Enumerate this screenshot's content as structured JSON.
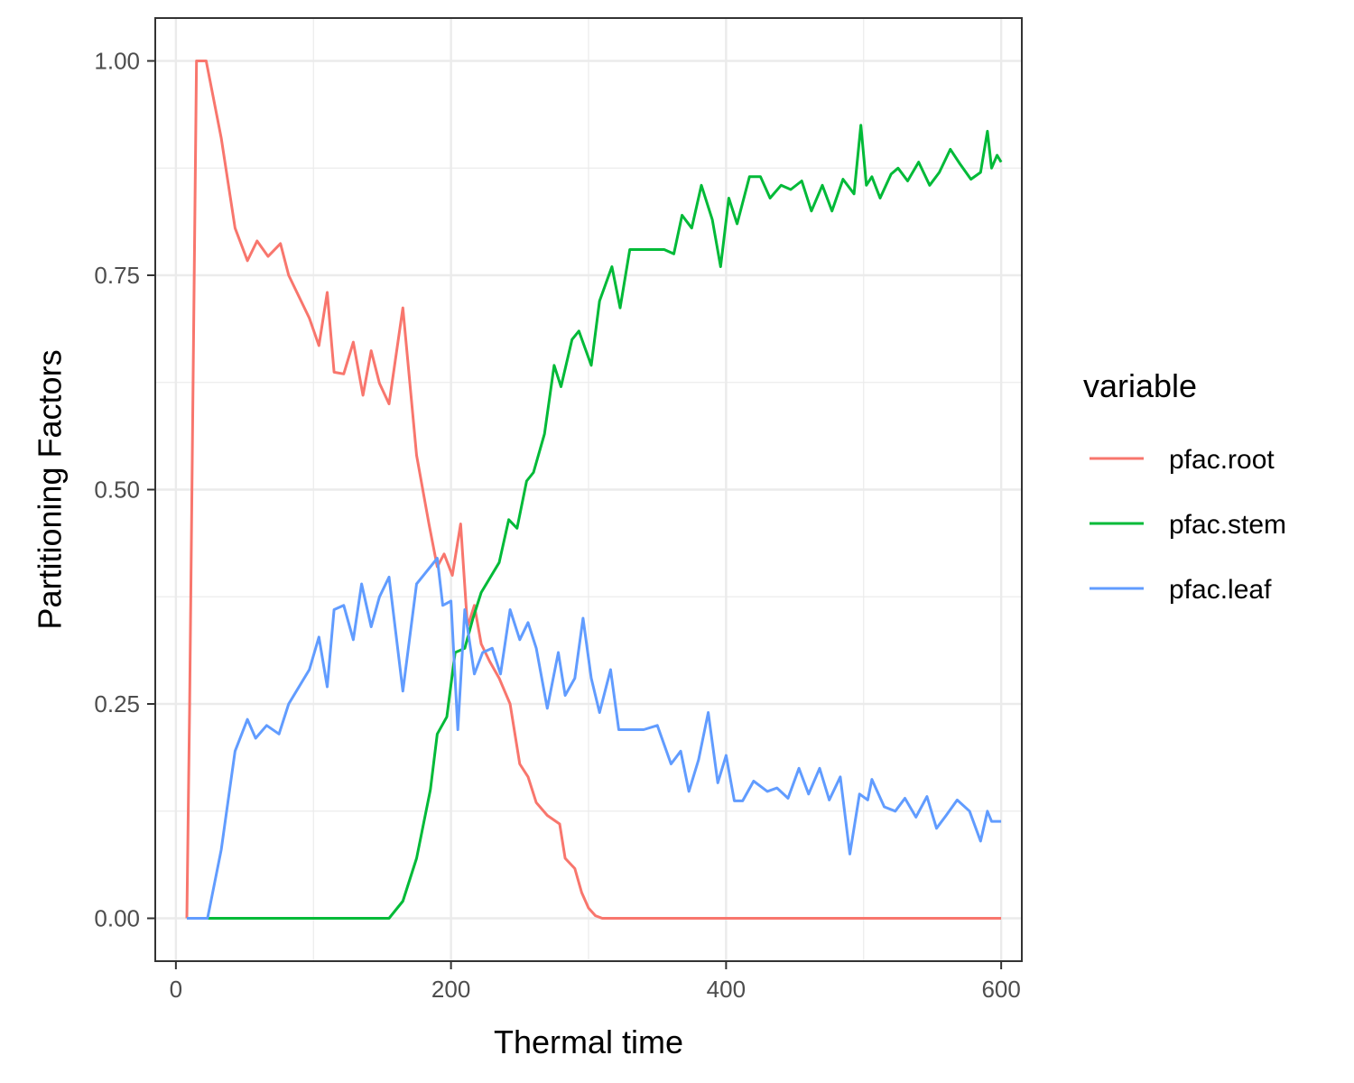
{
  "chart_data": {
    "type": "line",
    "xlabel": "Thermal time",
    "ylabel": "Partitioning Factors",
    "xlim": [
      -15,
      615
    ],
    "ylim": [
      -0.05,
      1.05
    ],
    "x_ticks": [
      0,
      200,
      400,
      600
    ],
    "x_tick_labels": [
      "0",
      "200",
      "400",
      "600"
    ],
    "y_ticks": [
      0,
      0.25,
      0.5,
      0.75,
      1.0
    ],
    "y_tick_labels": [
      "0.00",
      "0.25",
      "0.50",
      "0.75",
      "1.00"
    ],
    "grid": true,
    "legend": {
      "title": "variable",
      "position": "right"
    },
    "series": [
      {
        "name": "pfac.root",
        "color": "#F8766D",
        "x": [
          8,
          10,
          15,
          22,
          33,
          43,
          52,
          59,
          67,
          76,
          82,
          97,
          104,
          110,
          115,
          122,
          129,
          136,
          142,
          148,
          155,
          165,
          175,
          184,
          190,
          195,
          201,
          207,
          212,
          217,
          222,
          228,
          235,
          243,
          250,
          256,
          262,
          270,
          279,
          283,
          290,
          295,
          300,
          305,
          310,
          400,
          500,
          600
        ],
        "y": [
          0.0,
          0.25,
          1.0,
          1.0,
          0.91,
          0.805,
          0.767,
          0.79,
          0.772,
          0.787,
          0.75,
          0.7,
          0.668,
          0.73,
          0.637,
          0.635,
          0.672,
          0.61,
          0.662,
          0.624,
          0.6,
          0.712,
          0.54,
          0.46,
          0.41,
          0.425,
          0.4,
          0.46,
          0.34,
          0.365,
          0.32,
          0.3,
          0.28,
          0.25,
          0.18,
          0.165,
          0.135,
          0.12,
          0.11,
          0.07,
          0.058,
          0.03,
          0.012,
          0.003,
          0.0,
          0.0,
          0.0,
          0.0
        ]
      },
      {
        "name": "pfac.stem",
        "color": "#00BA38",
        "x": [
          8,
          20,
          100,
          155,
          165,
          175,
          185,
          190,
          197,
          203,
          210,
          216,
          222,
          235,
          242,
          248,
          255,
          260,
          268,
          275,
          280,
          288,
          293,
          302,
          308,
          317,
          323,
          330,
          340,
          350,
          355,
          362,
          368,
          375,
          382,
          390,
          396,
          402,
          408,
          417,
          425,
          432,
          440,
          447,
          455,
          462,
          470,
          477,
          485,
          493,
          498,
          502,
          506,
          512,
          520,
          525,
          532,
          540,
          548,
          555,
          563,
          570,
          578,
          585,
          590,
          593,
          597,
          600
        ],
        "y": [
          0.0,
          0.0,
          0.0,
          0.0,
          0.02,
          0.07,
          0.15,
          0.215,
          0.235,
          0.31,
          0.315,
          0.35,
          0.38,
          0.415,
          0.465,
          0.455,
          0.51,
          0.52,
          0.565,
          0.645,
          0.62,
          0.675,
          0.685,
          0.645,
          0.72,
          0.76,
          0.712,
          0.78,
          0.78,
          0.78,
          0.78,
          0.775,
          0.82,
          0.805,
          0.855,
          0.815,
          0.76,
          0.84,
          0.81,
          0.865,
          0.865,
          0.84,
          0.855,
          0.85,
          0.86,
          0.825,
          0.855,
          0.825,
          0.862,
          0.845,
          0.925,
          0.855,
          0.865,
          0.84,
          0.868,
          0.875,
          0.86,
          0.882,
          0.855,
          0.87,
          0.897,
          0.88,
          0.862,
          0.87,
          0.918,
          0.875,
          0.89,
          0.882
        ]
      },
      {
        "name": "pfac.leaf",
        "color": "#619CFF",
        "x": [
          8,
          23,
          33,
          43,
          52,
          58,
          66,
          75,
          82,
          97,
          104,
          110,
          115,
          122,
          129,
          135,
          142,
          148,
          155,
          165,
          175,
          185,
          190,
          194,
          200,
          205,
          210,
          217,
          223,
          230,
          236,
          243,
          250,
          256,
          262,
          270,
          278,
          283,
          290,
          296,
          302,
          308,
          316,
          322,
          330,
          340,
          350,
          360,
          367,
          373,
          380,
          387,
          394,
          400,
          406,
          412,
          420,
          430,
          437,
          445,
          453,
          460,
          468,
          475,
          483,
          490,
          497,
          503,
          506,
          515,
          523,
          530,
          538,
          546,
          553,
          560,
          568,
          577,
          585,
          590,
          593,
          600
        ],
        "y": [
          0.0,
          0.0,
          0.08,
          0.195,
          0.232,
          0.21,
          0.225,
          0.215,
          0.25,
          0.29,
          0.328,
          0.27,
          0.36,
          0.365,
          0.325,
          0.39,
          0.34,
          0.375,
          0.398,
          0.265,
          0.39,
          0.41,
          0.42,
          0.365,
          0.37,
          0.22,
          0.36,
          0.285,
          0.31,
          0.315,
          0.285,
          0.36,
          0.325,
          0.345,
          0.315,
          0.245,
          0.31,
          0.26,
          0.28,
          0.35,
          0.28,
          0.24,
          0.29,
          0.22,
          0.22,
          0.22,
          0.225,
          0.18,
          0.195,
          0.148,
          0.185,
          0.24,
          0.158,
          0.19,
          0.137,
          0.137,
          0.16,
          0.148,
          0.152,
          0.14,
          0.175,
          0.145,
          0.175,
          0.138,
          0.165,
          0.075,
          0.145,
          0.138,
          0.162,
          0.13,
          0.125,
          0.14,
          0.118,
          0.142,
          0.105,
          0.12,
          0.138,
          0.125,
          0.09,
          0.125,
          0.113,
          0.113
        ]
      }
    ]
  }
}
